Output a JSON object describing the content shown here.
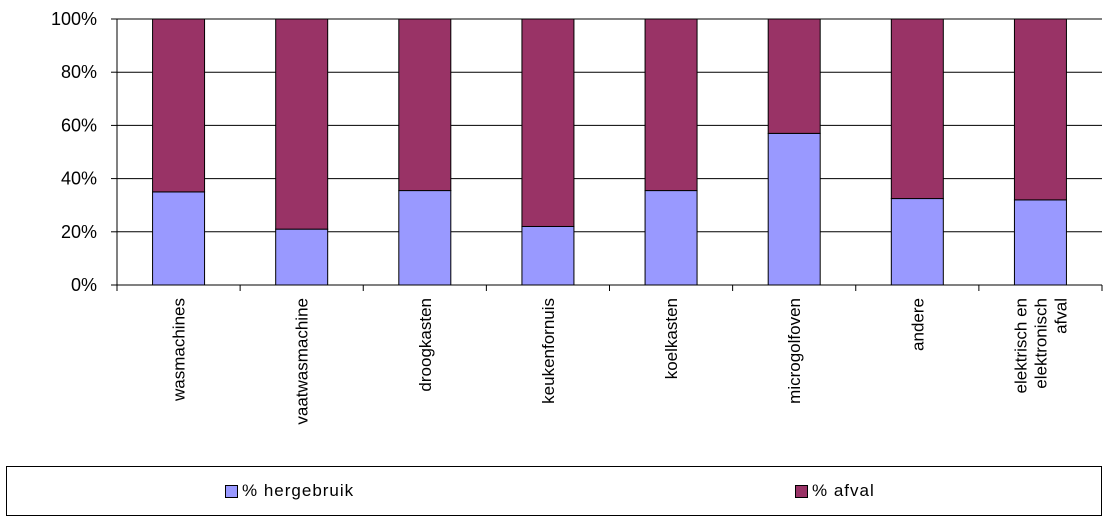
{
  "chart_data": {
    "type": "bar",
    "stacked": true,
    "percent": true,
    "categories": [
      [
        "wasmachines"
      ],
      [
        "vaatwasmachine"
      ],
      [
        "droogkasten"
      ],
      [
        "keukenfornuis"
      ],
      [
        "koelkasten"
      ],
      [
        "microgolfoven"
      ],
      [
        "andere"
      ],
      [
        "elektrisch en",
        "elektronisch",
        "afval"
      ]
    ],
    "series": [
      {
        "name": "% hergebruik",
        "color": "#9999ff",
        "values": [
          35,
          21,
          35.5,
          22,
          35.5,
          57,
          32.5,
          32
        ]
      },
      {
        "name": "% afval",
        "color": "#993366",
        "values": [
          65,
          79,
          64.5,
          78,
          64.5,
          43,
          67.5,
          68
        ]
      }
    ],
    "yticks": [
      "0%",
      "20%",
      "40%",
      "60%",
      "80%",
      "100%"
    ],
    "ylim": [
      0,
      100
    ],
    "grid": true,
    "legend_position": "bottom"
  }
}
